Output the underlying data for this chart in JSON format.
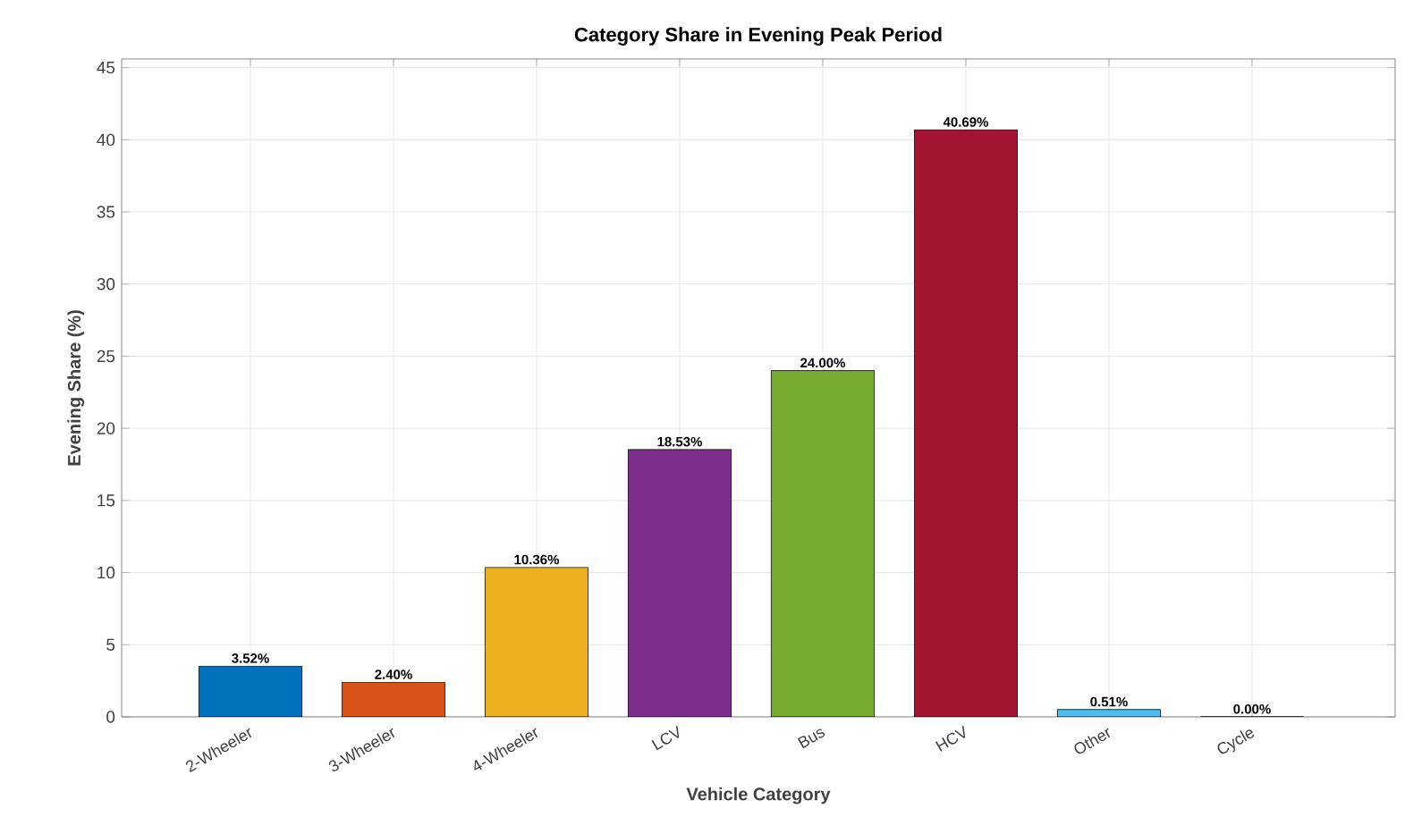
{
  "chart_data": {
    "type": "bar",
    "title": "Category Share in Evening Peak Period",
    "xlabel": "Vehicle Category",
    "ylabel": "Evening Share (%)",
    "categories": [
      "2-Wheeler",
      "3-Wheeler",
      "4-Wheeler",
      "LCV",
      "Bus",
      "HCV",
      "Other",
      "Cycle"
    ],
    "values": [
      3.52,
      2.4,
      10.36,
      18.53,
      24.0,
      40.69,
      0.51,
      0.0
    ],
    "value_labels": [
      "3.52%",
      "2.40%",
      "10.36%",
      "18.53%",
      "24.00%",
      "40.69%",
      "0.51%",
      "0.00%"
    ],
    "colors": [
      "#0072bd",
      "#d95319",
      "#edb120",
      "#7e2f8e",
      "#77ac30",
      "#a2142f",
      "#4dbeee",
      "#0072bd"
    ],
    "ylim": [
      0,
      45.6
    ],
    "yticks": [
      0,
      5,
      10,
      15,
      20,
      25,
      30,
      35,
      40,
      45
    ],
    "grid": true
  }
}
